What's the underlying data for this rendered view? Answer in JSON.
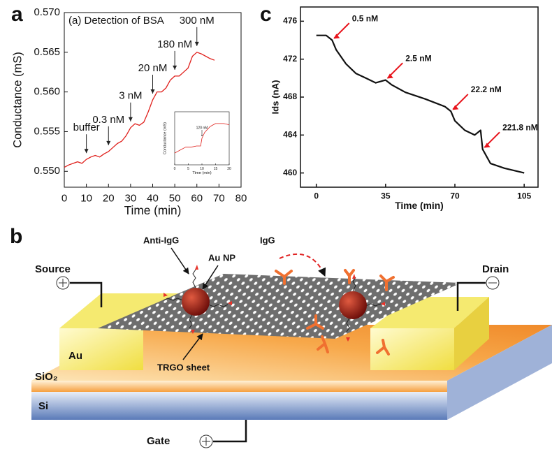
{
  "chart_data": [
    {
      "type": "line",
      "panel_label": "a",
      "title": "(a) Detection of BSA",
      "xlabel": "Time (min)",
      "ylabel": "Conductance (mS)",
      "xlim": [
        0,
        80
      ],
      "xticks": [
        0,
        10,
        20,
        30,
        40,
        50,
        60,
        70,
        80
      ],
      "ylim": [
        0.548,
        0.57
      ],
      "yticks": [
        {
          "value": 0.55,
          "label": "0.550"
        },
        0.555,
        {
          "value": 0.56,
          "label": "0.560"
        },
        0.565,
        {
          "value": 0.57,
          "label": "0.570"
        }
      ],
      "annotation_color": "#222",
      "annotations": [
        {
          "text": "buffer",
          "x": 10
        },
        {
          "text": "0.3 nM",
          "x": 20
        },
        {
          "text": "3 nM",
          "x": 30
        },
        {
          "text": "20 nM",
          "x": 40
        },
        {
          "text": "180 nM",
          "x": 50
        },
        {
          "text": "300 nM",
          "x": 60
        }
      ],
      "series": [
        {
          "color": "#e0201c",
          "x": [
            0,
            2,
            4,
            6,
            8,
            10,
            12,
            14,
            16,
            18,
            20,
            22,
            24,
            26,
            28,
            30,
            32,
            34,
            36,
            38,
            40,
            42,
            44,
            46,
            48,
            50,
            52,
            54,
            56,
            58,
            60,
            62,
            64,
            66,
            68
          ],
          "values": [
            0.5505,
            0.5508,
            0.551,
            0.5512,
            0.551,
            0.5515,
            0.5518,
            0.552,
            0.5518,
            0.5522,
            0.5525,
            0.553,
            0.5535,
            0.5538,
            0.5545,
            0.5555,
            0.556,
            0.5558,
            0.5562,
            0.5575,
            0.559,
            0.56,
            0.56,
            0.5605,
            0.5615,
            0.562,
            0.562,
            0.5625,
            0.563,
            0.5645,
            0.565,
            0.5648,
            0.5645,
            0.5642,
            0.564
          ]
        }
      ]
    },
    {
      "type": "line",
      "xlabel": "Time (min)",
      "ylabel": "Conductance (mS)",
      "xlim": [
        0,
        20
      ],
      "xticks": [
        0,
        5,
        10,
        15,
        20
      ],
      "ylim": [
        0.548,
        0.557
      ],
      "annotation_color": "#222",
      "annotations": [
        {
          "text": "120 nM",
          "x": 10
        }
      ],
      "series": [
        {
          "color": "#e0201c",
          "x": [
            0,
            2,
            4,
            6,
            8,
            9.5,
            10,
            11,
            13,
            15,
            18,
            20
          ],
          "values": [
            0.55,
            0.5505,
            0.551,
            0.551,
            0.5512,
            0.5512,
            0.5525,
            0.5535,
            0.5545,
            0.555,
            0.555,
            0.5548
          ]
        }
      ]
    },
    {
      "type": "line",
      "panel_label": "c",
      "xlabel": "Time (min)",
      "ylabel": "Ids (nA)",
      "xlim": [
        -8,
        112
      ],
      "xticks": [
        0,
        35,
        70,
        105
      ],
      "ylim": [
        458.5,
        477.5
      ],
      "yticks": [
        460,
        464,
        468,
        472,
        476
      ],
      "annotation_color": "#e8141c",
      "annotations": [
        {
          "text": "0.5 nM",
          "x": 8
        },
        {
          "text": "2.5 nM",
          "x": 35
        },
        {
          "text": "22.2 nM",
          "x": 68
        },
        {
          "text": "221.8 nM",
          "x": 84
        }
      ],
      "series": [
        {
          "color": "#111",
          "x": [
            0,
            5,
            8,
            10,
            15,
            20,
            25,
            30,
            35,
            38,
            45,
            55,
            65,
            68,
            70,
            75,
            80,
            83,
            84,
            88,
            95,
            105
          ],
          "values": [
            474.5,
            474.5,
            474,
            473,
            471.5,
            470.5,
            470,
            469.5,
            469.8,
            469.3,
            468.5,
            467.8,
            467,
            466.5,
            465.5,
            464.5,
            464,
            464.5,
            462.5,
            461,
            460.5,
            460
          ]
        }
      ]
    }
  ],
  "diagram": {
    "panel_label": "b",
    "anti_igg": "Anti-IgG",
    "au_np": "Au NP",
    "igg": "IgG",
    "source": "Source",
    "drain": "Drain",
    "au": "Au",
    "trgo": "TRGO sheet",
    "sio2": "SiO₂",
    "si": "Si",
    "gate": "Gate"
  }
}
